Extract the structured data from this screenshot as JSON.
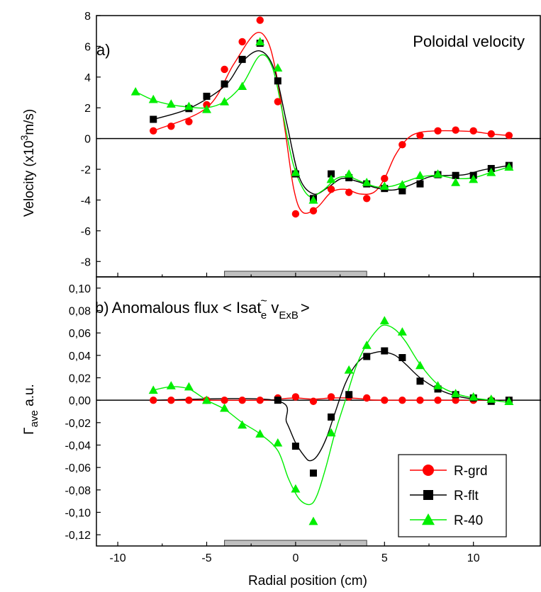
{
  "chart_data": [
    {
      "panel": "a)",
      "type": "scatter",
      "title": "Poloidal velocity",
      "xlabel": "",
      "ylabel": {
        "pre": "Velocity (x10",
        "sup": "3",
        "post": "m/s)"
      },
      "xlim": [
        -11.2,
        13.8
      ],
      "ylim": [
        -9,
        8
      ],
      "yticks": [
        -8,
        -6,
        -4,
        -2,
        0,
        2,
        4,
        6,
        8
      ],
      "ytick_labels": [
        "-8",
        "-6",
        "-4",
        "-2",
        "0",
        "2",
        "4",
        "6",
        "8"
      ],
      "zero_line": true,
      "shaded_bar": {
        "from": -4,
        "to": 4
      },
      "series": [
        {
          "name": "R-grd",
          "marker": "circle",
          "color": "#ff0000",
          "x": [
            -8,
            -7,
            -6,
            -5,
            -4,
            -3,
            -2,
            -1,
            0,
            1,
            2,
            3,
            4,
            5,
            6,
            7,
            8,
            9,
            10,
            11,
            12
          ],
          "y": [
            0.5,
            0.8,
            1.1,
            2.2,
            4.5,
            6.3,
            7.7,
            2.4,
            -4.9,
            -4.7,
            -3.3,
            -3.5,
            -3.9,
            -2.6,
            -0.4,
            0.2,
            0.5,
            0.55,
            0.5,
            0.3,
            0.2
          ]
        },
        {
          "name": "R-flt",
          "marker": "square",
          "color": "#000000",
          "x": [
            -8,
            -6,
            -5,
            -4,
            -3,
            -2,
            -1,
            0,
            1,
            2,
            3,
            4,
            5,
            6,
            7,
            8,
            9,
            10,
            11,
            12
          ],
          "y": [
            1.25,
            1.95,
            2.75,
            3.55,
            5.15,
            6.2,
            3.75,
            -2.3,
            -3.9,
            -2.3,
            -2.55,
            -2.95,
            -3.25,
            -3.4,
            -2.95,
            -2.35,
            -2.4,
            -2.4,
            -1.95,
            -1.75
          ]
        },
        {
          "name": "R-40",
          "marker": "triangle",
          "color": "#00ee00",
          "x": [
            -9,
            -8,
            -7,
            -6,
            -5,
            -4,
            -3,
            -2,
            -1,
            0,
            1,
            2,
            3,
            4,
            5,
            6,
            7,
            8,
            9,
            10,
            11,
            12
          ],
          "y": [
            3.05,
            2.55,
            2.25,
            2.1,
            1.9,
            2.4,
            3.4,
            6.3,
            4.6,
            -2.2,
            -4.0,
            -2.65,
            -2.3,
            -2.85,
            -3.1,
            -3.0,
            -2.4,
            -2.3,
            -2.85,
            -2.65,
            -2.2,
            -1.85
          ]
        }
      ],
      "fits": [
        {
          "color": "#ff0000",
          "x": [
            -8,
            -5,
            -3.5,
            -2.3,
            -1.6,
            -1.1,
            -0.6,
            -0.1,
            0.4,
            1.2,
            2.0,
            2.8,
            3.6,
            4.4,
            5.0,
            5.6,
            6.3,
            7.0,
            8.0,
            9.0,
            10.0,
            11.0,
            12.0
          ],
          "y": [
            0.5,
            2.0,
            4.8,
            6.8,
            6.4,
            4.3,
            0.6,
            -3.3,
            -4.8,
            -4.5,
            -3.5,
            -3.3,
            -3.6,
            -3.5,
            -2.6,
            -1.1,
            0.0,
            0.4,
            0.5,
            0.5,
            0.45,
            0.3,
            0.2
          ]
        },
        {
          "color": "#000000",
          "x": [
            -8,
            -6,
            -4,
            -3,
            -2,
            -1.2,
            -0.5,
            0.2,
            1.0,
            1.8,
            2.6,
            3.5,
            4.5,
            5.5,
            6.5,
            7.5,
            8.5,
            9.5,
            10.5,
            11.5,
            12
          ],
          "y": [
            1.25,
            1.95,
            3.4,
            5.0,
            5.7,
            4.5,
            1.0,
            -2.5,
            -3.6,
            -3.2,
            -2.6,
            -2.8,
            -3.2,
            -3.35,
            -3.0,
            -2.5,
            -2.4,
            -2.35,
            -2.05,
            -1.85,
            -1.75
          ]
        },
        {
          "color": "#00ee00",
          "x": [
            -9,
            -8,
            -7,
            -6,
            -5,
            -4,
            -3,
            -2,
            -1.3,
            -0.7,
            -0.1,
            0.7,
            1.5,
            2.3,
            3.0,
            3.8,
            4.6,
            5.4,
            6.2,
            7.0,
            8.0,
            9.0,
            10.0,
            11.0,
            12.0
          ],
          "y": [
            3.05,
            2.5,
            2.2,
            2.05,
            2.0,
            2.4,
            3.5,
            5.4,
            4.6,
            1.5,
            -1.8,
            -3.7,
            -3.4,
            -2.6,
            -2.5,
            -2.85,
            -3.15,
            -3.1,
            -2.8,
            -2.5,
            -2.4,
            -2.6,
            -2.55,
            -2.2,
            -1.85
          ]
        }
      ]
    },
    {
      "panel": "b)",
      "type": "scatter",
      "title": {
        "main": "Anomalous flux < Isat",
        "tilde": "~",
        "e": "e",
        "v": " v",
        "sub": "ExB",
        "close": ">"
      },
      "xlabel": "Radial position (cm)",
      "ylabel": {
        "symbol": "Γ",
        "sub": "ave",
        "post": " a.u."
      },
      "xlim": [
        -11.2,
        13.8
      ],
      "ylim": [
        -0.13,
        0.11
      ],
      "xticks": [
        -10,
        -5,
        0,
        5,
        10
      ],
      "xtick_labels": [
        "-10",
        "-5",
        "0",
        "5",
        "10"
      ],
      "yticks": [
        -0.12,
        -0.1,
        -0.08,
        -0.06,
        -0.04,
        -0.02,
        0.0,
        0.02,
        0.04,
        0.06,
        0.08,
        0.1
      ],
      "ytick_labels": [
        "-0,12",
        "-0,10",
        "-0,08",
        "-0,06",
        "-0,04",
        "-0,02",
        "0,00",
        "0,02",
        "0,04",
        "0,06",
        "0,08",
        "0,10"
      ],
      "zero_line": true,
      "shaded_bar": {
        "from": -4,
        "to": 4
      },
      "legend_position": "bottom-right",
      "series": [
        {
          "name": "R-grd",
          "marker": "circle",
          "color": "#ff0000",
          "x": [
            -8,
            -7,
            -6,
            -5,
            -4,
            -3,
            -2,
            -1,
            0,
            1,
            2,
            3,
            4,
            5,
            6,
            7,
            8,
            9,
            10,
            11,
            12
          ],
          "y": [
            0.0,
            0.0,
            0.0,
            0.0,
            0.0,
            0.0,
            0.0,
            0.002,
            0.003,
            -0.001,
            0.003,
            0.003,
            0.002,
            0.0,
            0.0,
            0.0,
            0.0,
            0.0,
            0.0,
            0.0,
            0.0
          ]
        },
        {
          "name": "R-flt",
          "marker": "square",
          "color": "#000000",
          "x": [
            -1,
            0,
            1,
            2,
            3,
            4,
            5,
            6,
            7,
            8,
            9,
            10,
            11,
            12
          ],
          "y": [
            0.0,
            -0.041,
            -0.065,
            -0.015,
            0.005,
            0.039,
            0.044,
            0.038,
            0.017,
            0.01,
            0.005,
            0.002,
            -0.001,
            0.0
          ]
        },
        {
          "name": "R-40",
          "marker": "triangle",
          "color": "#00ee00",
          "x": [
            -8,
            -7,
            -6,
            -5,
            -4,
            -3,
            -2,
            -1,
            0,
            1,
            2,
            3,
            4,
            5,
            6,
            7,
            8,
            9,
            10,
            11,
            12
          ],
          "y": [
            0.009,
            0.013,
            0.012,
            0.0,
            -0.007,
            -0.022,
            -0.03,
            -0.038,
            -0.079,
            -0.108,
            -0.029,
            0.027,
            0.049,
            0.071,
            0.061,
            0.031,
            0.013,
            0.006,
            0.003,
            0.001,
            -0.001
          ]
        }
      ],
      "fits": [
        {
          "color": "#ff0000",
          "x": [
            -8,
            -2,
            -1,
            0,
            1,
            2,
            3,
            4,
            5,
            12
          ],
          "y": [
            0.0,
            0.0,
            0.001,
            0.002,
            0.001,
            0.002,
            0.002,
            0.001,
            0.0,
            0.0
          ]
        },
        {
          "color": "#000000",
          "x": [
            -8,
            -1.2,
            -0.5,
            0.0,
            0.5,
            0.8,
            1.2,
            1.7,
            2.2,
            2.8,
            3.4,
            4.0,
            4.6,
            5.0,
            5.6,
            6.2,
            7.0,
            8.0,
            9.0,
            10.0,
            11.0,
            12.0
          ],
          "y": [
            0.0,
            0.0,
            -0.02,
            -0.038,
            -0.05,
            -0.054,
            -0.05,
            -0.035,
            -0.012,
            0.015,
            0.032,
            0.04,
            0.043,
            0.043,
            0.04,
            0.032,
            0.02,
            0.01,
            0.004,
            0.001,
            0.0,
            0.0
          ]
        },
        {
          "color": "#00ee00",
          "x": [
            -8,
            -7,
            -6,
            -5,
            -4,
            -3,
            -2,
            -1,
            -0.4,
            0.2,
            0.8,
            1.2,
            1.7,
            2.2,
            2.8,
            3.4,
            4.0,
            4.6,
            5.0,
            5.6,
            6.2,
            7.0,
            8.0,
            9.0,
            10.0,
            11.0,
            12.0
          ],
          "y": [
            0.009,
            0.012,
            0.01,
            0.0,
            -0.008,
            -0.02,
            -0.03,
            -0.045,
            -0.07,
            -0.088,
            -0.093,
            -0.085,
            -0.06,
            -0.03,
            0.0,
            0.03,
            0.05,
            0.063,
            0.067,
            0.063,
            0.052,
            0.032,
            0.014,
            0.006,
            0.002,
            0.0,
            -0.002
          ]
        }
      ]
    }
  ],
  "legend": [
    {
      "name": "R-grd",
      "marker": "circle",
      "color": "#ff0000"
    },
    {
      "name": "R-flt",
      "marker": "square",
      "color": "#000000"
    },
    {
      "name": "R-40",
      "marker": "triangle",
      "color": "#00ee00"
    }
  ]
}
